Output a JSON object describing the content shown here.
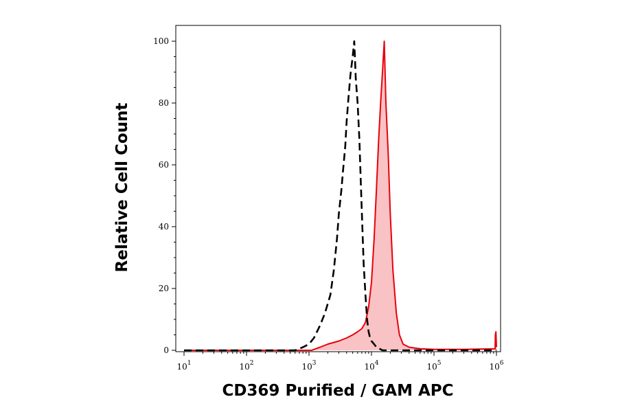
{
  "chart_data": {
    "type": "area",
    "xlabel": "CD369 Purified / GAM APC",
    "ylabel": "Relative Cell Count",
    "x_scale": "log",
    "xlim": [
      10,
      1000000
    ],
    "ylim": [
      0,
      100
    ],
    "x_tick_labels": [
      {
        "base": "10",
        "exp": "1",
        "value": 10
      },
      {
        "base": "10",
        "exp": "2",
        "value": 100
      },
      {
        "base": "10",
        "exp": "3",
        "value": 1000
      },
      {
        "base": "10",
        "exp": "4",
        "value": 10000
      },
      {
        "base": "10",
        "exp": "5",
        "value": 100000
      },
      {
        "base": "10",
        "exp": "6",
        "value": 1000000
      }
    ],
    "y_tick_labels": [
      "0",
      "20",
      "40",
      "60",
      "80",
      "100"
    ],
    "y_ticks": [
      0,
      20,
      40,
      60,
      80,
      100
    ],
    "grid": false,
    "legend": "none",
    "series": [
      {
        "style": "dashed",
        "color": "#000000",
        "fill": "none",
        "x": [
          10,
          600,
          800,
          1000,
          1200,
          1500,
          1800,
          2200,
          2500,
          2800,
          3000,
          3300,
          3500,
          3800,
          4000,
          4300,
          4600,
          5000,
          5300,
          5600,
          6000,
          6400,
          6800,
          7200,
          7500,
          8000,
          8500,
          9000,
          9500,
          10000,
          11000,
          12000,
          13500,
          15000,
          1000000
        ],
        "y": [
          0,
          0,
          1,
          2,
          4,
          8,
          12,
          18,
          26,
          36,
          44,
          52,
          58,
          66,
          74,
          82,
          89,
          95,
          100,
          88,
          80,
          68,
          52,
          38,
          28,
          18,
          10,
          6,
          4,
          3,
          2,
          1,
          0.5,
          0,
          0
        ]
      },
      {
        "style": "solid",
        "color": "#e8000b",
        "fill": "#f9c2c4",
        "x": [
          10,
          1100,
          1500,
          2000,
          3000,
          4000,
          5000,
          6000,
          7000,
          8000,
          9000,
          10000,
          11000,
          12000,
          13000,
          14000,
          15000,
          16000,
          17000,
          18500,
          20000,
          22000,
          25000,
          28000,
          32000,
          40000,
          60000,
          100000,
          300000,
          950000,
          960000,
          980000,
          1000000
        ],
        "y": [
          0,
          0,
          1,
          2,
          3,
          4,
          5,
          6,
          7,
          9,
          14,
          22,
          36,
          52,
          68,
          80,
          90,
          100,
          80,
          64,
          44,
          26,
          12,
          5,
          2,
          1,
          0.5,
          0.3,
          0.3,
          0.5,
          5,
          6,
          1
        ]
      }
    ]
  }
}
